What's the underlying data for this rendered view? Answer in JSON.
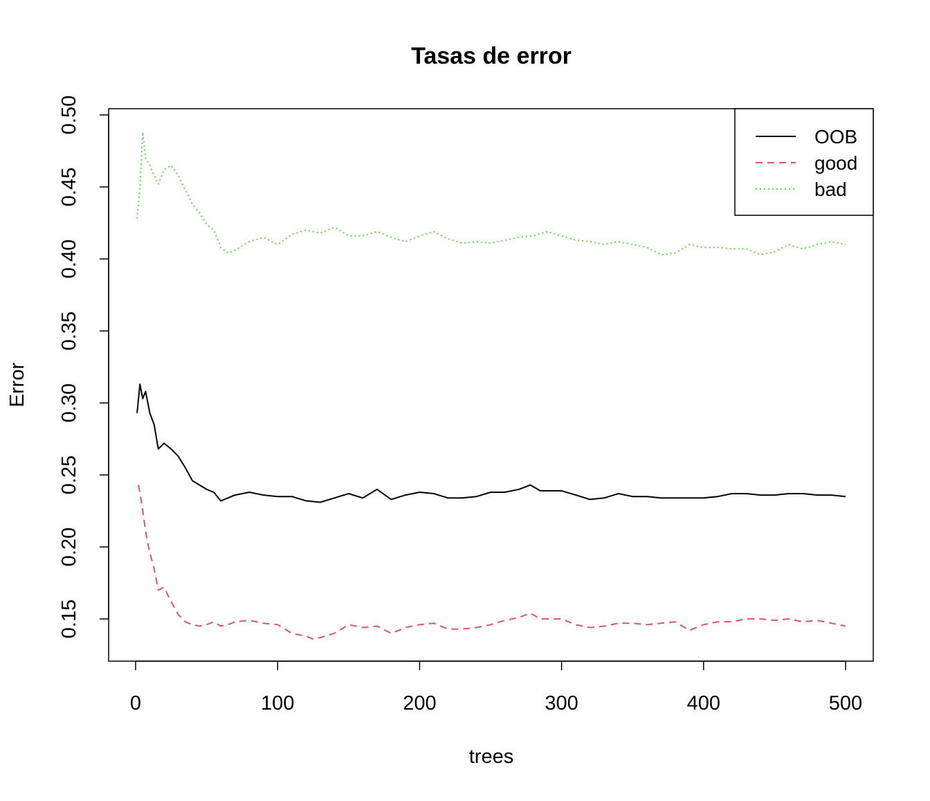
{
  "chart_data": {
    "type": "line",
    "title": "Tasas de error",
    "xlabel": "trees",
    "ylabel": "Error",
    "xlim": [
      0,
      500
    ],
    "ylim": [
      0.13,
      0.5
    ],
    "x_ticks": [
      0,
      100,
      200,
      300,
      400,
      500
    ],
    "x_tick_labels": [
      "0",
      "100",
      "200",
      "300",
      "400",
      "500"
    ],
    "y_ticks": [
      0.15,
      0.2,
      0.25,
      0.3,
      0.35,
      0.4,
      0.45,
      0.5
    ],
    "y_tick_labels": [
      "0.15",
      "0.20",
      "0.25",
      "0.30",
      "0.35",
      "0.40",
      "0.45",
      "0.50"
    ],
    "grid": false,
    "legend_position": "top-right",
    "legend": [
      "OOB",
      "good",
      "bad"
    ],
    "series_style": [
      {
        "color": "#000000",
        "dash": ""
      },
      {
        "color": "#DF536B",
        "dash": "10,7"
      },
      {
        "color": "#61D04F",
        "dash": "2,4"
      }
    ],
    "series": [
      {
        "name": "OOB",
        "x": [
          1,
          3,
          5,
          7,
          10,
          13,
          16,
          20,
          25,
          30,
          35,
          40,
          45,
          50,
          55,
          60,
          65,
          70,
          80,
          90,
          100,
          110,
          120,
          130,
          140,
          150,
          160,
          170,
          180,
          190,
          200,
          210,
          220,
          230,
          240,
          250,
          260,
          270,
          278,
          285,
          300,
          310,
          320,
          330,
          340,
          350,
          360,
          370,
          380,
          390,
          400,
          410,
          420,
          430,
          440,
          450,
          460,
          470,
          480,
          490,
          500
        ],
        "y": [
          0.293,
          0.313,
          0.303,
          0.308,
          0.293,
          0.285,
          0.268,
          0.272,
          0.268,
          0.263,
          0.255,
          0.246,
          0.243,
          0.24,
          0.238,
          0.232,
          0.234,
          0.236,
          0.238,
          0.236,
          0.235,
          0.235,
          0.232,
          0.231,
          0.234,
          0.237,
          0.234,
          0.24,
          0.233,
          0.236,
          0.238,
          0.237,
          0.234,
          0.234,
          0.235,
          0.238,
          0.238,
          0.24,
          0.243,
          0.239,
          0.239,
          0.236,
          0.233,
          0.234,
          0.237,
          0.235,
          0.235,
          0.234,
          0.234,
          0.234,
          0.234,
          0.235,
          0.237,
          0.237,
          0.236,
          0.236,
          0.237,
          0.237,
          0.236,
          0.236,
          0.235
        ]
      },
      {
        "name": "good",
        "x": [
          2,
          4,
          6,
          8,
          10,
          13,
          16,
          20,
          25,
          30,
          35,
          40,
          45,
          50,
          55,
          60,
          65,
          70,
          80,
          90,
          100,
          110,
          120,
          125,
          130,
          140,
          150,
          160,
          170,
          180,
          190,
          200,
          210,
          220,
          230,
          240,
          250,
          260,
          270,
          278,
          285,
          300,
          310,
          320,
          330,
          340,
          350,
          360,
          370,
          380,
          390,
          400,
          410,
          420,
          430,
          440,
          450,
          460,
          470,
          480,
          490,
          500
        ],
        "y": [
          0.243,
          0.232,
          0.218,
          0.205,
          0.196,
          0.185,
          0.17,
          0.172,
          0.162,
          0.153,
          0.148,
          0.146,
          0.145,
          0.146,
          0.148,
          0.145,
          0.146,
          0.148,
          0.149,
          0.147,
          0.146,
          0.14,
          0.138,
          0.136,
          0.137,
          0.14,
          0.146,
          0.144,
          0.145,
          0.14,
          0.144,
          0.146,
          0.147,
          0.143,
          0.143,
          0.144,
          0.146,
          0.149,
          0.151,
          0.154,
          0.15,
          0.15,
          0.146,
          0.144,
          0.145,
          0.147,
          0.147,
          0.146,
          0.147,
          0.148,
          0.142,
          0.146,
          0.148,
          0.148,
          0.15,
          0.15,
          0.149,
          0.15,
          0.148,
          0.149,
          0.147,
          0.145
        ]
      },
      {
        "name": "bad",
        "x": [
          1,
          3,
          5,
          7,
          10,
          13,
          16,
          20,
          25,
          30,
          35,
          40,
          45,
          50,
          55,
          60,
          65,
          70,
          80,
          90,
          100,
          110,
          120,
          130,
          140,
          150,
          160,
          170,
          180,
          190,
          200,
          210,
          220,
          230,
          240,
          250,
          260,
          270,
          280,
          290,
          300,
          310,
          320,
          330,
          340,
          350,
          360,
          370,
          380,
          390,
          400,
          410,
          420,
          430,
          440,
          450,
          460,
          470,
          480,
          490,
          500
        ],
        "y": [
          0.428,
          0.45,
          0.488,
          0.47,
          0.465,
          0.458,
          0.452,
          0.462,
          0.465,
          0.458,
          0.448,
          0.438,
          0.432,
          0.424,
          0.42,
          0.408,
          0.404,
          0.406,
          0.412,
          0.415,
          0.41,
          0.417,
          0.42,
          0.418,
          0.422,
          0.416,
          0.416,
          0.419,
          0.415,
          0.412,
          0.416,
          0.419,
          0.414,
          0.411,
          0.412,
          0.411,
          0.413,
          0.415,
          0.416,
          0.419,
          0.416,
          0.413,
          0.412,
          0.41,
          0.412,
          0.41,
          0.408,
          0.403,
          0.404,
          0.41,
          0.408,
          0.408,
          0.407,
          0.407,
          0.403,
          0.405,
          0.41,
          0.407,
          0.41,
          0.412,
          0.41
        ]
      }
    ]
  }
}
